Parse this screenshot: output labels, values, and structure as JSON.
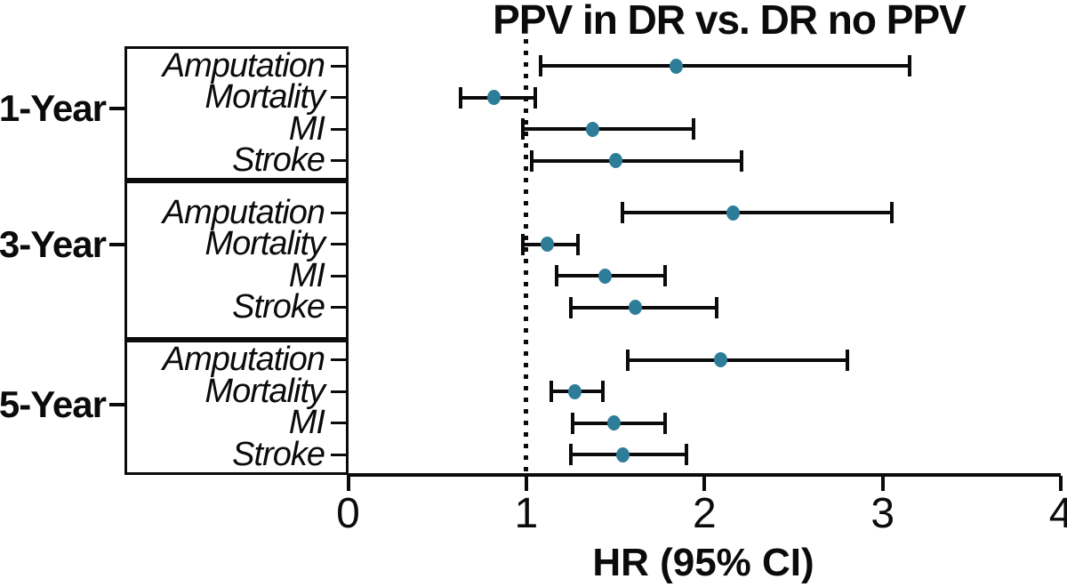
{
  "title": "PPV in DR vs. DR no PPV",
  "axis": {
    "label": "HR (95% CI)"
  },
  "colors": {
    "point": "#2e7d98",
    "line": "#0b0b0b"
  },
  "chart_data": {
    "type": "forest",
    "title": "PPV in DR vs. DR no PPV",
    "xlabel": "HR (95% CI)",
    "xlim": [
      0,
      4
    ],
    "x_ticks": [
      0,
      1,
      2,
      3,
      4
    ],
    "reference_line": 1,
    "grid": false,
    "groups": [
      {
        "label": "1-Year",
        "rows": [
          {
            "outcome": "Amputation",
            "hr": 1.84,
            "ci_low": 1.08,
            "ci_high": 3.15
          },
          {
            "outcome": "Mortality",
            "hr": 0.82,
            "ci_low": 0.63,
            "ci_high": 1.05
          },
          {
            "outcome": "MI",
            "hr": 1.37,
            "ci_low": 0.98,
            "ci_high": 1.94
          },
          {
            "outcome": "Stroke",
            "hr": 1.5,
            "ci_low": 1.03,
            "ci_high": 2.21
          }
        ]
      },
      {
        "label": "3-Year",
        "rows": [
          {
            "outcome": "Amputation",
            "hr": 2.16,
            "ci_low": 1.54,
            "ci_high": 3.05
          },
          {
            "outcome": "Mortality",
            "hr": 1.12,
            "ci_low": 0.98,
            "ci_high": 1.29
          },
          {
            "outcome": "MI",
            "hr": 1.44,
            "ci_low": 1.17,
            "ci_high": 1.78
          },
          {
            "outcome": "Stroke",
            "hr": 1.61,
            "ci_low": 1.25,
            "ci_high": 2.07
          }
        ]
      },
      {
        "label": "5-Year",
        "rows": [
          {
            "outcome": "Amputation",
            "hr": 2.09,
            "ci_low": 1.57,
            "ci_high": 2.8
          },
          {
            "outcome": "Mortality",
            "hr": 1.27,
            "ci_low": 1.14,
            "ci_high": 1.43
          },
          {
            "outcome": "MI",
            "hr": 1.49,
            "ci_low": 1.26,
            "ci_high": 1.78
          },
          {
            "outcome": "Stroke",
            "hr": 1.54,
            "ci_low": 1.25,
            "ci_high": 1.9
          }
        ]
      }
    ]
  }
}
